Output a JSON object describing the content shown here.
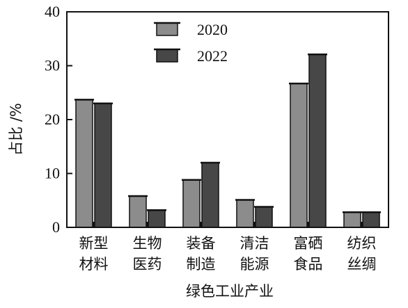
{
  "chart_data": {
    "type": "bar",
    "categories": [
      [
        "新型",
        "材料"
      ],
      [
        "生物",
        "医药"
      ],
      [
        "装备",
        "制造"
      ],
      [
        "清洁",
        "能源"
      ],
      [
        "富硒",
        "食品"
      ],
      [
        "纺织",
        "丝绸"
      ]
    ],
    "series": [
      {
        "name": "2020",
        "values": [
          23.7,
          5.8,
          8.8,
          5.1,
          26.7,
          2.8
        ],
        "color": "#8c8c8c"
      },
      {
        "name": "2022",
        "values": [
          23.0,
          3.2,
          12.0,
          3.8,
          32.1,
          2.8
        ],
        "color": "#474747"
      }
    ],
    "yticks": [
      "0",
      "10",
      "20",
      "30",
      "40"
    ],
    "ylim": [
      0,
      40
    ],
    "ylabel": "占比 /%",
    "xlabel": "绿色工业产业",
    "legend_position": "top-center",
    "grid": false
  }
}
